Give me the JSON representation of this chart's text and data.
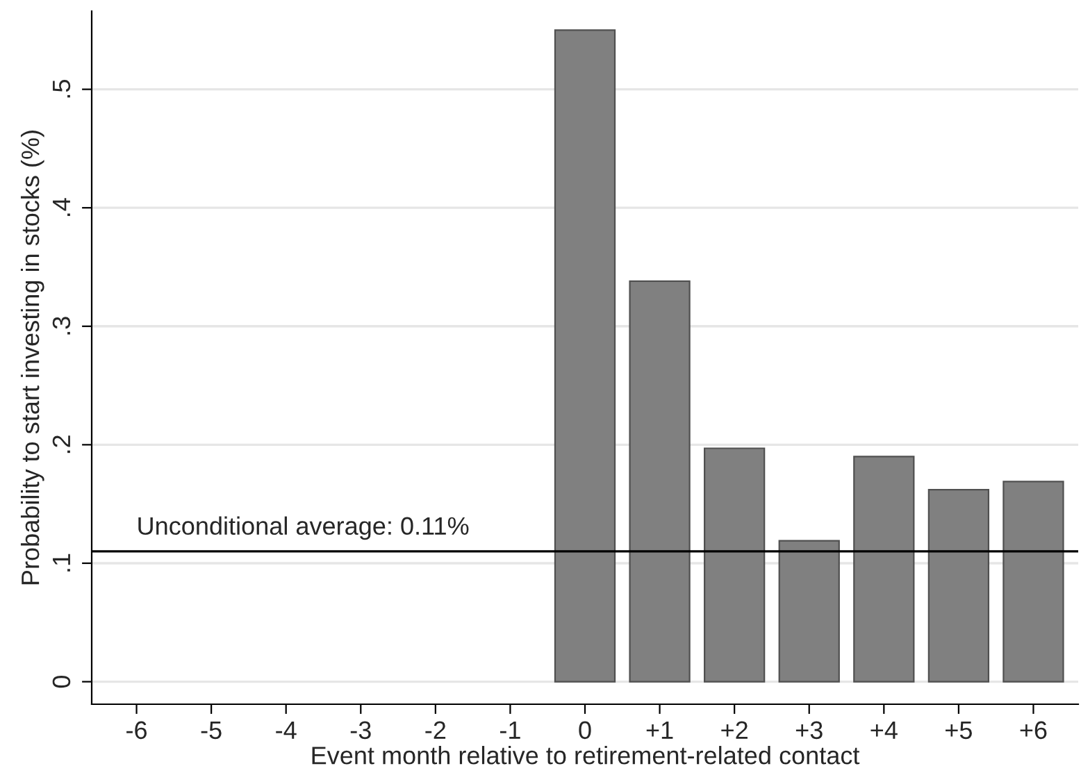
{
  "chart_data": {
    "type": "bar",
    "xlabel": "Event month relative to retirement-related contact",
    "ylabel": "Probability to start investing in stocks (%)",
    "categories": [
      "-6",
      "-5",
      "-4",
      "-3",
      "-2",
      "-1",
      "0",
      "+1",
      "+2",
      "+3",
      "+4",
      "+5",
      "+6"
    ],
    "values": [
      null,
      null,
      null,
      null,
      null,
      null,
      0.55,
      0.338,
      0.197,
      0.119,
      0.19,
      0.162,
      0.169
    ],
    "color": "#808080",
    "ylim": [
      -0.019,
      0.566
    ],
    "yticks": [
      {
        "value": 0,
        "label": "0"
      },
      {
        "value": 0.1,
        "label": ".1"
      },
      {
        "value": 0.2,
        "label": ".2"
      },
      {
        "value": 0.3,
        "label": ".3"
      },
      {
        "value": 0.4,
        "label": ".4"
      },
      {
        "value": 0.5,
        "label": ".5"
      }
    ],
    "grid": "y",
    "ref_lines": [
      {
        "axis": "y",
        "value": 0.11,
        "label": "Unconditional average: 0.11%",
        "color": "#000000"
      }
    ]
  }
}
